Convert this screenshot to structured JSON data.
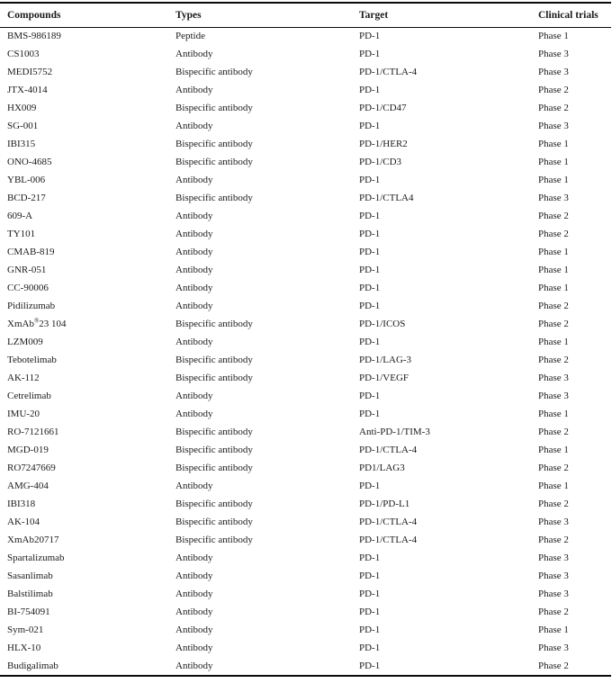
{
  "table": {
    "columns": [
      "Compounds",
      "Types",
      "Target",
      "Clinical trials"
    ],
    "rows": [
      [
        "BMS-986189",
        "Peptide",
        "PD-1",
        "Phase 1"
      ],
      [
        "CS1003",
        "Antibody",
        "PD-1",
        "Phase 3"
      ],
      [
        "MEDI5752",
        "Bispecific antibody",
        "PD-1/CTLA-4",
        "Phase 3"
      ],
      [
        "JTX-4014",
        "Antibody",
        "PD-1",
        "Phase 2"
      ],
      [
        "HX009",
        "Bispecific antibody",
        "PD-1/CD47",
        "Phase 2"
      ],
      [
        "SG-001",
        "Antibody",
        "PD-1",
        "Phase 3"
      ],
      [
        "IBI315",
        "Bispecific antibody",
        "PD-1/HER2",
        "Phase 1"
      ],
      [
        "ONO-4685",
        "Bispecific antibody",
        "PD-1/CD3",
        "Phase 1"
      ],
      [
        "YBL-006",
        "Antibody",
        "PD-1",
        "Phase 1"
      ],
      [
        "BCD-217",
        "Bispecific antibody",
        "PD-1/CTLA4",
        "Phase 3"
      ],
      [
        "609-A",
        "Antibody",
        "PD-1",
        "Phase 2"
      ],
      [
        "TY101",
        "Antibody",
        "PD-1",
        "Phase 2"
      ],
      [
        "CMAB-819",
        "Antibody",
        "PD-1",
        "Phase 1"
      ],
      [
        "GNR-051",
        "Antibody",
        "PD-1",
        "Phase 1"
      ],
      [
        "CC-90006",
        "Antibody",
        "PD-1",
        "Phase 1"
      ],
      [
        "Pidilizumab",
        "Antibody",
        "PD-1",
        "Phase 2"
      ],
      [
        "XmAb®23 104",
        "Bispecific antibody",
        "PD-1/ICOS",
        "Phase 2"
      ],
      [
        "LZM009",
        "Antibody",
        "PD-1",
        "Phase 1"
      ],
      [
        "Tebotelimab",
        "Bispecific antibody",
        "PD-1/LAG-3",
        "Phase 2"
      ],
      [
        "AK-112",
        "Bispecific antibody",
        "PD-1/VEGF",
        "Phase 3"
      ],
      [
        "Cetrelimab",
        "Antibody",
        "PD-1",
        "Phase 3"
      ],
      [
        "IMU-20",
        "Antibody",
        "PD-1",
        "Phase 1"
      ],
      [
        "RO-7121661",
        "Bispecific antibody",
        "Anti-PD-1/TIM-3",
        "Phase 2"
      ],
      [
        "MGD-019",
        "Bispecific antibody",
        "PD-1/CTLA-4",
        "Phase 1"
      ],
      [
        "RO7247669",
        "Bispecific antibody",
        "PD1/LAG3",
        "Phase 2"
      ],
      [
        "AMG-404",
        "Antibody",
        "PD-1",
        "Phase 1"
      ],
      [
        "IBI318",
        "Bispecific antibody",
        "PD-1/PD-L1",
        "Phase 2"
      ],
      [
        "AK-104",
        "Bispecific antibody",
        "PD-1/CTLA-4",
        "Phase 3"
      ],
      [
        "XmAb20717",
        "Bispecific antibody",
        "PD-1/CTLA-4",
        "Phase 2"
      ],
      [
        "Spartalizumab",
        "Antibody",
        "PD-1",
        "Phase 3"
      ],
      [
        "Sasanlimab",
        "Antibody",
        "PD-1",
        "Phase 3"
      ],
      [
        "Balstilimab",
        "Antibody",
        "PD-1",
        "Phase 3"
      ],
      [
        "BI-754091",
        "Antibody",
        "PD-1",
        "Phase 2"
      ],
      [
        "Sym-021",
        "Antibody",
        "PD-1",
        "Phase 1"
      ],
      [
        "HLX-10",
        "Antibody",
        "PD-1",
        "Phase 3"
      ],
      [
        "Budigalimab",
        "Antibody",
        "PD-1",
        "Phase 2"
      ]
    ]
  }
}
